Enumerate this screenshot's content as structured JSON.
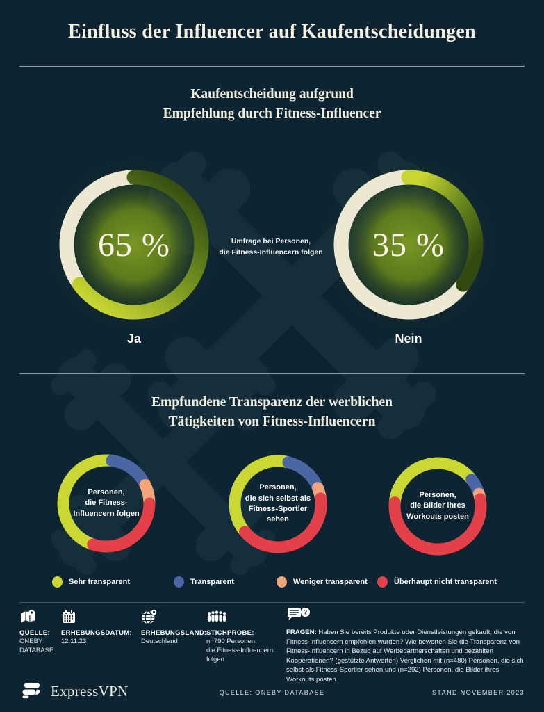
{
  "header": {
    "title": "Einfluss der Influencer auf Kaufentscheidungen"
  },
  "section_purchase": {
    "heading_line1": "Kaufentscheidung aufgrund",
    "heading_line2": "Empfehlung durch Fitness-Influencer",
    "note_line1": "Umfrage bei Personen,",
    "note_line2": "die Fitness-Influencern folgen"
  },
  "section_transparency": {
    "heading_line1": "Empfundene Transparenz der werblichen",
    "heading_line2": "Tätigkeiten von Fitness-Influencern"
  },
  "chart_data": [
    {
      "type": "pie",
      "variant": "donut",
      "title": "Kaufentscheidung aufgrund Empfehlung durch Fitness-Influencer",
      "note": "Umfrage bei Personen, die Fitness-Influencern folgen",
      "unit": "%",
      "colors": {
        "arc_gradient": [
          "#324a10",
          "#6c8a1e",
          "#c7d631"
        ],
        "remainder": "#ece8d1",
        "glow": "#7f9c22"
      },
      "charts": [
        {
          "id": "ja",
          "label": "Ja",
          "value": 65,
          "value_display": "65 %"
        },
        {
          "id": "nein",
          "label": "Nein",
          "value": 35,
          "value_display": "35 %"
        }
      ]
    },
    {
      "type": "pie",
      "variant": "donut",
      "title": "Empfundene Transparenz der werblichen Tätigkeiten von Fitness-Influencern",
      "categories": [
        "Sehr transparent",
        "Transparent",
        "Weniger transparent",
        "Überhaupt nicht transparent"
      ],
      "colors": [
        "#cbd732",
        "#4a67a4",
        "#f2a47b",
        "#e4404a"
      ],
      "unit": "%",
      "charts": [
        {
          "id": "follow",
          "label": "Personen, die Fitness-Influencern folgen",
          "label_lines": [
            "Personen,",
            "die Fitness-",
            "Influencern folgen"
          ],
          "values": [
            47,
            16,
            7,
            30
          ],
          "start_deg": 198
        },
        {
          "id": "self",
          "label": "Personen, die sich selbst als Fitness-Sportler sehen",
          "label_lines": [
            "Personen,",
            "die sich selbst als",
            "Fitness-Sportler",
            "sehen"
          ],
          "values": [
            40,
            15,
            4,
            41
          ],
          "start_deg": 230
        },
        {
          "id": "post",
          "label": "Personen, die Bilder ihres Workouts posten",
          "label_lines": [
            "Personen,",
            "die Bilder ihres",
            "Workouts posten"
          ],
          "values": [
            38,
            6,
            2,
            54
          ],
          "start_deg": 275
        }
      ]
    }
  ],
  "legend": {
    "items": [
      "Sehr transparent",
      "Transparent",
      "Weniger transparent",
      "Überhaupt nicht transparent"
    ]
  },
  "metadata": {
    "items": [
      {
        "icon": "map-icon",
        "label": "QUELLE:",
        "lines": [
          "ONEBY",
          "DATABASE"
        ]
      },
      {
        "icon": "calendar-icon",
        "label": "ERHEBUNGSDATUM:",
        "lines": [
          "12.11.23"
        ]
      },
      {
        "icon": "globe-pin-icon",
        "label": "ERHEBUNGSLAND:",
        "lines": [
          "Deutschland"
        ]
      },
      {
        "icon": "people-icon",
        "label": "STICHPROBE:",
        "lines": [
          "n=790 Personen,",
          "die Fitness-Influencern",
          "folgen"
        ]
      }
    ]
  },
  "fragen": {
    "icon": "speech-question-icon",
    "label": "FRAGEN:",
    "text": "Haben Sie bereits Produkte oder Dienstleistungen gekauft, die von Fitness-Influencern empfohlen wurden? Wie bewerten Sie die Transparenz von Fitness-Influencern in Bezug auf Werbepartnerschaften und bezahlten Kooperationen? (gestützte Antworten) Verglichen mit (n=480) Personen, die sich selbst als Fitness-Sportler sehen und (n=292) Personen, die Bilder ihres Workouts posten."
  },
  "footer": {
    "brand": "ExpressVPN",
    "source": "QUELLE: ONEBY DATABASE",
    "stand": "STAND NOVEMBER 2023"
  },
  "theme": {
    "background": "#0d2433",
    "watermark": "#152e3c",
    "cream": "#ece8d1",
    "lime": "#cbd732",
    "blue": "#4a67a4",
    "orange": "#f2a47b",
    "red": "#e4404a"
  }
}
